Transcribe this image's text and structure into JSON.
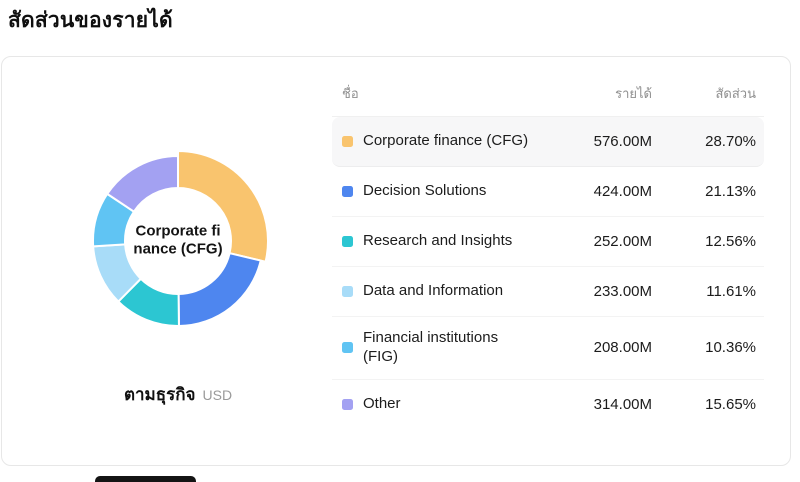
{
  "page": {
    "title": "สัดส่วนของรายได้"
  },
  "card": {
    "chart": {
      "center_label": "Corporate finance (CFG)",
      "caption": "ตามธุรกิจ",
      "unit": "USD"
    },
    "table": {
      "headers": {
        "name": "ชื่อ",
        "revenue": "รายได้",
        "share": "สัดส่วน"
      }
    }
  },
  "chart_data": {
    "type": "pie",
    "donut": true,
    "title": "สัดส่วนของรายได้",
    "subtitle": "ตามธุรกิจ",
    "unit": "USD",
    "legend_position": "right",
    "start_angle_deg": -90,
    "direction": "clockwise",
    "segments": [
      {
        "label": "Corporate finance (CFG)",
        "value_m": 576.0,
        "display_value": "576.00M",
        "percent": 28.7,
        "display_percent": "28.70%",
        "color": "#F9C46E",
        "highlighted": true
      },
      {
        "label": "Decision Solutions",
        "value_m": 424.0,
        "display_value": "424.00M",
        "percent": 21.13,
        "display_percent": "21.13%",
        "color": "#4E86EF",
        "highlighted": false
      },
      {
        "label": "Research and Insights",
        "value_m": 252.0,
        "display_value": "252.00M",
        "percent": 12.56,
        "display_percent": "12.56%",
        "color": "#2CC6D2",
        "highlighted": false
      },
      {
        "label": "Data and Information",
        "value_m": 233.0,
        "display_value": "233.00M",
        "percent": 11.61,
        "display_percent": "11.61%",
        "color": "#A8DCF8",
        "highlighted": false
      },
      {
        "label": "Financial institutions (FIG)",
        "value_m": 208.0,
        "display_value": "208.00M",
        "percent": 10.36,
        "display_percent": "10.36%",
        "color": "#60C4F3",
        "highlighted": false
      },
      {
        "label": "Other",
        "value_m": 314.0,
        "display_value": "314.00M",
        "percent": 15.65,
        "display_percent": "15.65%",
        "color": "#A3A1F2",
        "highlighted": false
      }
    ]
  }
}
